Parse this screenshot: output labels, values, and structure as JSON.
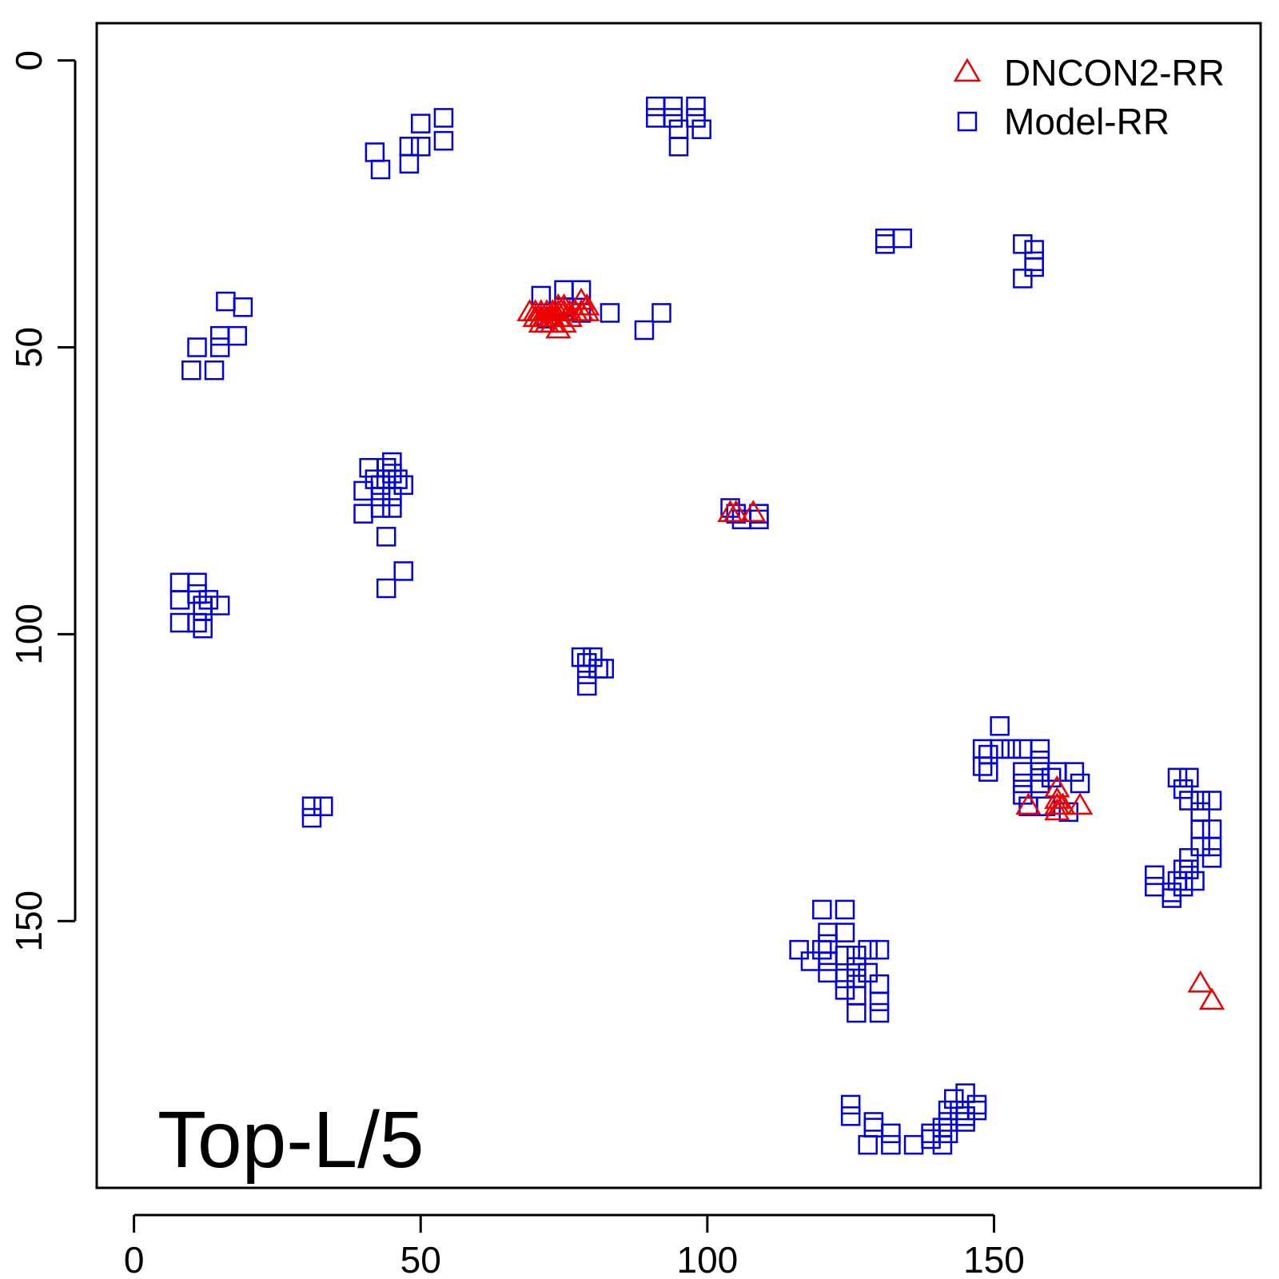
{
  "chart_data": {
    "type": "scatter",
    "title": "",
    "xlabel": "",
    "ylabel": "",
    "annotation": "Top-L/5",
    "xlim": [
      -6.5,
      196.5
    ],
    "ylim": [
      -6.5,
      196.5
    ],
    "y_inverted": true,
    "x_ticks": [
      0,
      50,
      100,
      150
    ],
    "y_ticks": [
      0,
      50,
      100,
      150
    ],
    "x_tick_labels": [
      "0",
      "50",
      "100",
      "150"
    ],
    "y_tick_labels": [
      "0",
      "50",
      "100",
      "150"
    ],
    "grid": false,
    "legend_position": "top-right",
    "series": [
      {
        "name": "DNCON2-RR",
        "marker": "triangle",
        "color": "#ee0000",
        "points": [
          [
            69,
            44
          ],
          [
            70,
            44
          ],
          [
            70,
            45
          ],
          [
            71,
            44
          ],
          [
            71,
            45
          ],
          [
            71,
            46
          ],
          [
            72,
            44
          ],
          [
            72,
            45
          ],
          [
            72,
            46
          ],
          [
            73,
            44
          ],
          [
            73,
            45
          ],
          [
            73,
            46
          ],
          [
            74,
            43
          ],
          [
            74,
            44
          ],
          [
            74,
            45
          ],
          [
            74,
            47
          ],
          [
            75,
            43
          ],
          [
            75,
            44
          ],
          [
            75,
            46
          ],
          [
            76,
            44
          ],
          [
            76,
            45
          ],
          [
            77,
            44
          ],
          [
            78,
            42
          ],
          [
            78,
            44
          ],
          [
            79,
            43
          ],
          [
            79,
            44
          ],
          [
            104,
            79
          ],
          [
            105,
            79
          ],
          [
            108,
            79
          ],
          [
            156,
            130
          ],
          [
            161,
            127
          ],
          [
            161,
            129
          ],
          [
            161,
            130
          ],
          [
            161,
            131
          ],
          [
            162,
            130
          ],
          [
            165,
            130
          ],
          [
            186,
            161
          ],
          [
            188,
            164
          ]
        ]
      },
      {
        "name": "Model-RR",
        "marker": "square",
        "color": "#0000dd",
        "points": [
          [
            42,
            16
          ],
          [
            43,
            19
          ],
          [
            48,
            15
          ],
          [
            48,
            18
          ],
          [
            50,
            11
          ],
          [
            50,
            15
          ],
          [
            54,
            10
          ],
          [
            54,
            14
          ],
          [
            91,
            8
          ],
          [
            91,
            10
          ],
          [
            94,
            8
          ],
          [
            94,
            10
          ],
          [
            95,
            12
          ],
          [
            95,
            15
          ],
          [
            98,
            8
          ],
          [
            98,
            10
          ],
          [
            99,
            12
          ],
          [
            16,
            42
          ],
          [
            19,
            43
          ],
          [
            15,
            48
          ],
          [
            18,
            48
          ],
          [
            11,
            50
          ],
          [
            15,
            50
          ],
          [
            10,
            54
          ],
          [
            14,
            54
          ],
          [
            71,
            41
          ],
          [
            72,
            45
          ],
          [
            75,
            40
          ],
          [
            75,
            43
          ],
          [
            78,
            40
          ],
          [
            78,
            44
          ],
          [
            83,
            44
          ],
          [
            89,
            47
          ],
          [
            92,
            44
          ],
          [
            131,
            31
          ],
          [
            131,
            32
          ],
          [
            134,
            31
          ],
          [
            155,
            32
          ],
          [
            155,
            38
          ],
          [
            157,
            33
          ],
          [
            157,
            35
          ],
          [
            157,
            36
          ],
          [
            44,
            71
          ],
          [
            45,
            70
          ],
          [
            45,
            72
          ],
          [
            41,
            71
          ],
          [
            42,
            73
          ],
          [
            44,
            73
          ],
          [
            46,
            73
          ],
          [
            40,
            75
          ],
          [
            43,
            74
          ],
          [
            43,
            76
          ],
          [
            45,
            76
          ],
          [
            47,
            74
          ],
          [
            40,
            79
          ],
          [
            43,
            78
          ],
          [
            45,
            78
          ],
          [
            44,
            83
          ],
          [
            47,
            89
          ],
          [
            44,
            92
          ],
          [
            104,
            78
          ],
          [
            105,
            79
          ],
          [
            106,
            80
          ],
          [
            109,
            79
          ],
          [
            109,
            80
          ],
          [
            8,
            91
          ],
          [
            8,
            94
          ],
          [
            11,
            91
          ],
          [
            11,
            93
          ],
          [
            12,
            95
          ],
          [
            12,
            96
          ],
          [
            13,
            94
          ],
          [
            15,
            95
          ],
          [
            8,
            98
          ],
          [
            11,
            98
          ],
          [
            12,
            99
          ],
          [
            78,
            104
          ],
          [
            79,
            105
          ],
          [
            79,
            107
          ],
          [
            80,
            104
          ],
          [
            81,
            106
          ],
          [
            82,
            106
          ],
          [
            79,
            109
          ],
          [
            31,
            130
          ],
          [
            31,
            132
          ],
          [
            33,
            130
          ],
          [
            151,
            116
          ],
          [
            148,
            120
          ],
          [
            148,
            123
          ],
          [
            149,
            121
          ],
          [
            149,
            124
          ],
          [
            151,
            120
          ],
          [
            153,
            120
          ],
          [
            155,
            120
          ],
          [
            158,
            120
          ],
          [
            155,
            124
          ],
          [
            155,
            126
          ],
          [
            158,
            122
          ],
          [
            158,
            124
          ],
          [
            158,
            126
          ],
          [
            160,
            125
          ],
          [
            161,
            124
          ],
          [
            164,
            124
          ],
          [
            165,
            126
          ],
          [
            155,
            128
          ],
          [
            156,
            130
          ],
          [
            159,
            130
          ],
          [
            163,
            131
          ],
          [
            182,
            125
          ],
          [
            184,
            125
          ],
          [
            183,
            127
          ],
          [
            184,
            129
          ],
          [
            186,
            129
          ],
          [
            186,
            131
          ],
          [
            188,
            129
          ],
          [
            186,
            134
          ],
          [
            188,
            134
          ],
          [
            188,
            137
          ],
          [
            188,
            139
          ],
          [
            186,
            137
          ],
          [
            184,
            139
          ],
          [
            183,
            141
          ],
          [
            184,
            141
          ],
          [
            182,
            143
          ],
          [
            183,
            144
          ],
          [
            185,
            143
          ],
          [
            178,
            142
          ],
          [
            178,
            144
          ],
          [
            181,
            145
          ],
          [
            181,
            146
          ],
          [
            120,
            148
          ],
          [
            124,
            148
          ],
          [
            121,
            152
          ],
          [
            121,
            154
          ],
          [
            120,
            155
          ],
          [
            116,
            155
          ],
          [
            118,
            157
          ],
          [
            121,
            157
          ],
          [
            124,
            152
          ],
          [
            124,
            156
          ],
          [
            126,
            156
          ],
          [
            128,
            155
          ],
          [
            126,
            158
          ],
          [
            128,
            159
          ],
          [
            130,
            155
          ],
          [
            121,
            159
          ],
          [
            124,
            160
          ],
          [
            126,
            160
          ],
          [
            124,
            162
          ],
          [
            126,
            163
          ],
          [
            130,
            161
          ],
          [
            130,
            164
          ],
          [
            126,
            166
          ],
          [
            130,
            166
          ],
          [
            125,
            182
          ],
          [
            125,
            184
          ],
          [
            129,
            185
          ],
          [
            129,
            186
          ],
          [
            132,
            187
          ],
          [
            128,
            189
          ],
          [
            132,
            189
          ],
          [
            136,
            189
          ],
          [
            139,
            187
          ],
          [
            139,
            188
          ],
          [
            141,
            189
          ],
          [
            142,
            187
          ],
          [
            142,
            185
          ],
          [
            141,
            186
          ],
          [
            142,
            183
          ],
          [
            144,
            183
          ],
          [
            145,
            184
          ],
          [
            145,
            185
          ],
          [
            147,
            182
          ],
          [
            147,
            183
          ],
          [
            143,
            181
          ],
          [
            145,
            180
          ]
        ]
      }
    ]
  }
}
